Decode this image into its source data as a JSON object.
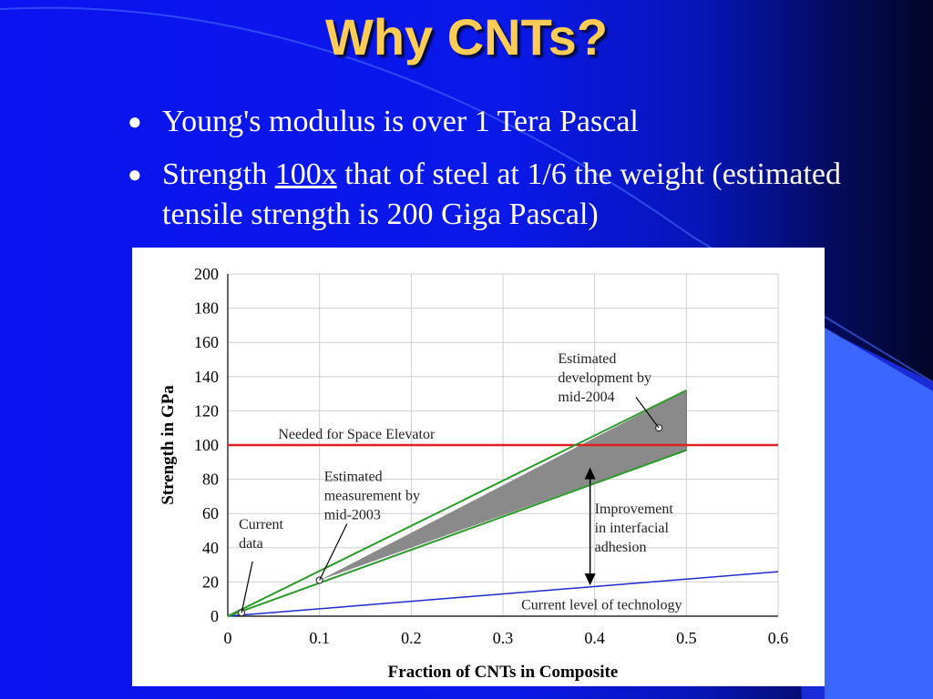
{
  "slide": {
    "title": "Why CNTs?",
    "bullets": [
      {
        "text": "Young's modulus is over 1 Tera Pascal"
      },
      {
        "pre": "Strength ",
        "underlined": "100x",
        "post": " that of steel at 1/6 the weight (estimated tensile strength is 200 Giga Pascal)"
      }
    ],
    "colors": {
      "title": "#ffcc55",
      "background": "#0a14f0",
      "text": "#ffffff"
    }
  },
  "chart_data": {
    "type": "line",
    "title": "",
    "xlabel": "Fraction of CNTs in Composite",
    "ylabel": "Strength in GPa",
    "xlim": [
      0,
      0.6
    ],
    "ylim": [
      0,
      200
    ],
    "xticks": [
      "0",
      "0.1",
      "0.2",
      "0.3",
      "0.4",
      "0.5",
      "0.6"
    ],
    "yticks": [
      "0",
      "20",
      "40",
      "60",
      "80",
      "100",
      "120",
      "140",
      "160",
      "180",
      "200"
    ],
    "grid": true,
    "series": [
      {
        "name": "Needed for Space Elevator",
        "color": "#e02020",
        "x": [
          0,
          0.6
        ],
        "y": [
          100,
          100
        ]
      },
      {
        "name": "Current level of technology",
        "color": "#1e2ad0",
        "x": [
          0,
          0.6
        ],
        "y": [
          0,
          26
        ]
      },
      {
        "color": "#2a9a2a",
        "x": [
          0,
          0.5
        ],
        "y": [
          0,
          132
        ]
      },
      {
        "color": "#2a9a2a",
        "x": [
          0,
          0.5
        ],
        "y": [
          0,
          97
        ]
      }
    ],
    "shaded_band": {
      "color": "#8a8a8a",
      "x": [
        0.1,
        0.5
      ],
      "upper": [
        21,
        132
      ],
      "lower": [
        21,
        97
      ]
    },
    "points": [
      {
        "x": 0.015,
        "y": 2
      },
      {
        "x": 0.1,
        "y": 21
      },
      {
        "x": 0.47,
        "y": 110
      }
    ],
    "annotations": [
      {
        "text": [
          "Current",
          "data"
        ]
      },
      {
        "text": [
          "Estimated",
          "measurement by",
          "mid-2003"
        ]
      },
      {
        "text": [
          "Estimated",
          "development by",
          "mid-2004"
        ]
      },
      {
        "text": [
          "Improvement",
          "in interfacial",
          "adhesion"
        ]
      }
    ],
    "arrow": {
      "x": 0.395,
      "from_y": 18,
      "to_y": 87
    }
  }
}
